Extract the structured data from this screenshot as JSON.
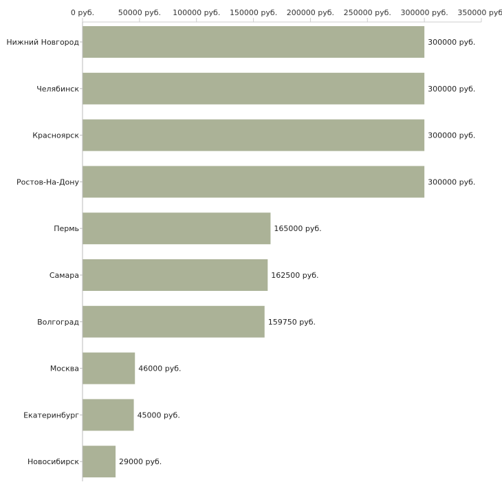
{
  "chart_data": {
    "type": "bar",
    "orientation": "horizontal",
    "title": "",
    "xlabel": "",
    "ylabel": "",
    "currency_suffix": " руб.",
    "xlim": [
      0,
      350000
    ],
    "xticks": [
      0,
      50000,
      100000,
      150000,
      200000,
      250000,
      300000,
      350000
    ],
    "xtick_labels": [
      "0 руб.",
      "50000 руб.",
      "100000 руб.",
      "150000 руб.",
      "200000 руб.",
      "250000 руб.",
      "300000 руб.",
      "350000 руб."
    ],
    "categories": [
      "Нижний Новгород",
      "Челябинск",
      "Красноярск",
      "Ростов-На-Дону",
      "Пермь",
      "Самара",
      "Волгоград",
      "Москва",
      "Екатеринбург",
      "Новосибирск"
    ],
    "values": [
      300000,
      300000,
      300000,
      300000,
      165000,
      162500,
      159750,
      46000,
      45000,
      29000
    ],
    "value_labels": [
      "300000 руб.",
      "300000 руб.",
      "300000 руб.",
      "300000 руб.",
      "165000 руб.",
      "162500 руб.",
      "159750 руб.",
      "46000 руб.",
      "45000 руб.",
      "29000 руб."
    ],
    "bar_color": "#abb297",
    "grid": false,
    "legend": "none"
  }
}
